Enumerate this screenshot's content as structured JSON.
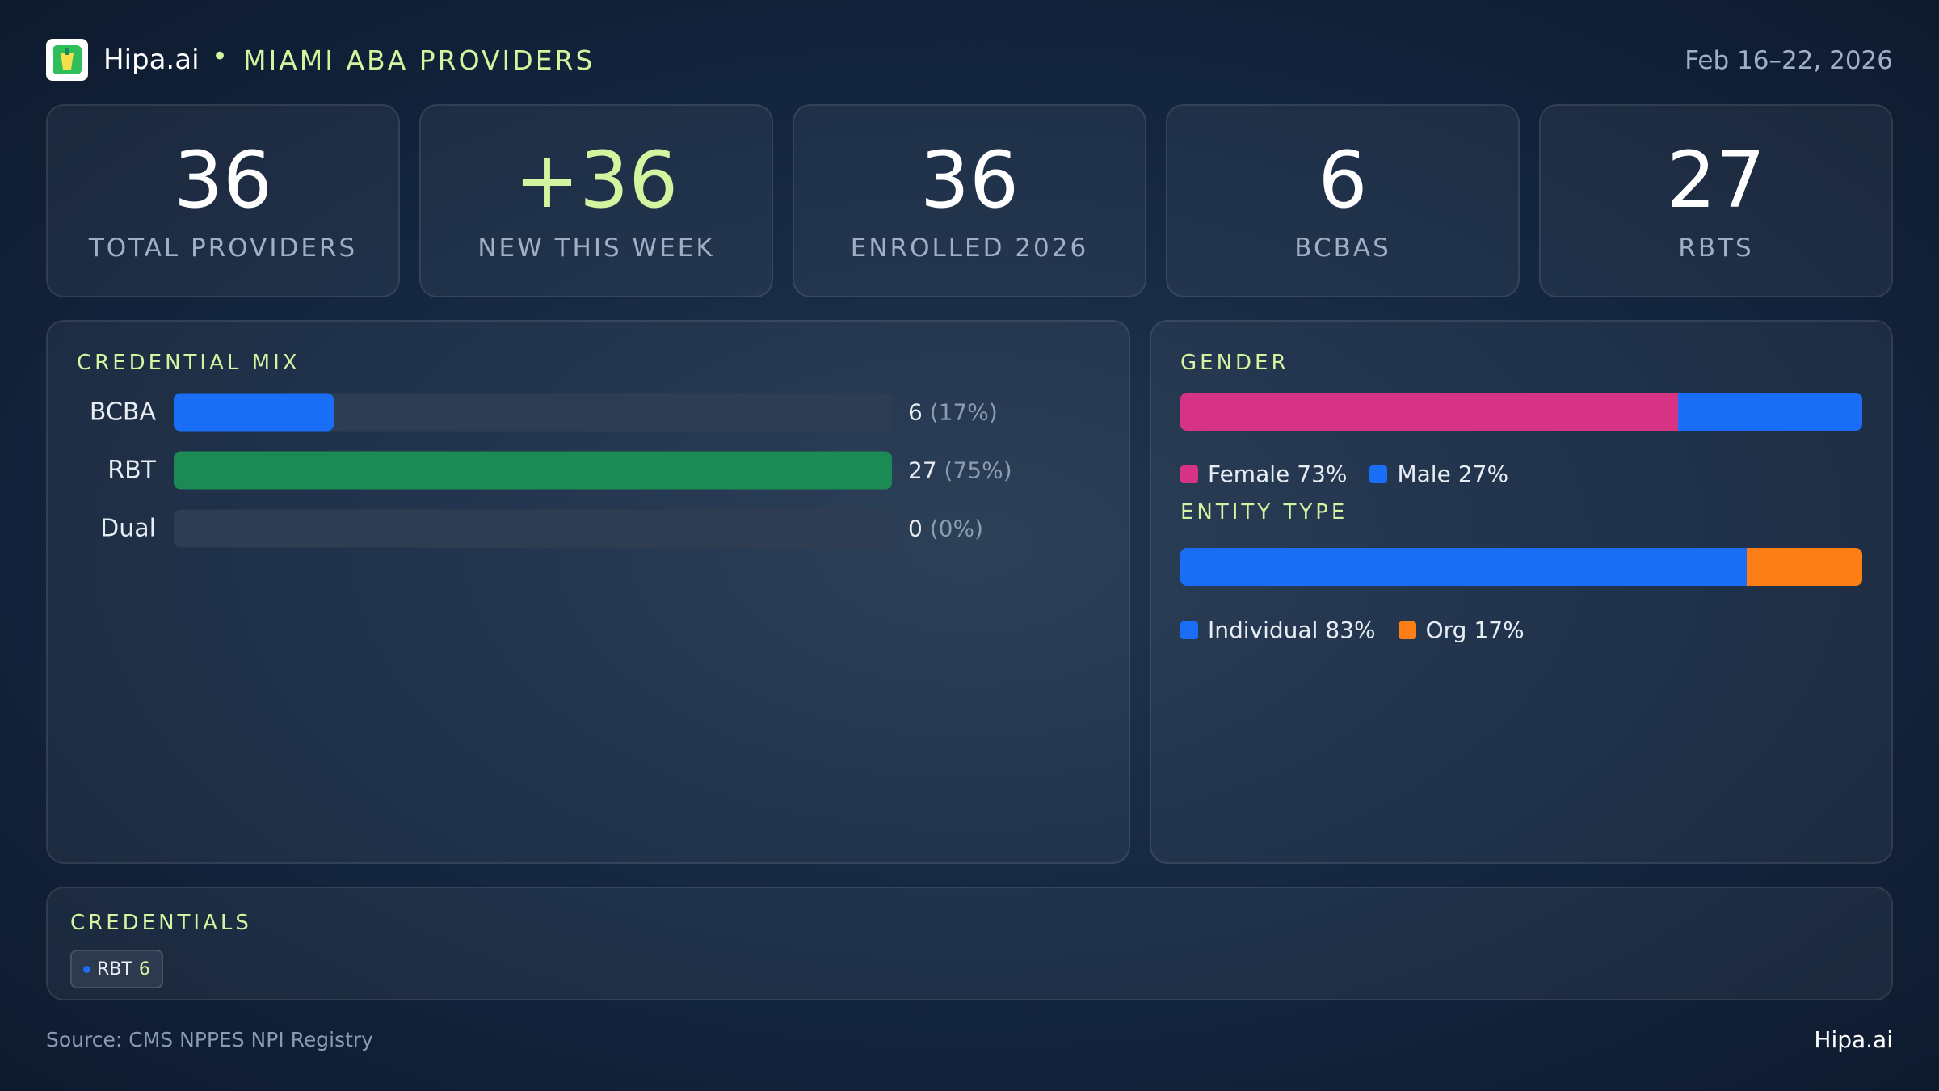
{
  "header": {
    "brand": "Hipa.ai",
    "title": "MIAMI ABA PROVIDERS",
    "date": "Feb 16–22, 2026"
  },
  "kpis": [
    {
      "value": 36,
      "label": "TOTAL PROVIDERS"
    },
    {
      "value": "+36",
      "label": "NEW THIS WEEK"
    },
    {
      "value": 36,
      "label": "ENROLLED 2026"
    },
    {
      "value": 6,
      "label": "BCBAS"
    },
    {
      "value": 27,
      "label": "RBTS"
    }
  ],
  "credential_mix": {
    "title": "CREDENTIAL MIX",
    "color_track": "#2e3d52",
    "rows": [
      {
        "label": "BCBA",
        "value": 6,
        "share": 17,
        "share_label": "(17%)",
        "color": "#1a6ef5"
      },
      {
        "label": "RBT",
        "value": 27,
        "share": 75,
        "share_label": "(75%)",
        "color": "#1c8a55"
      },
      {
        "label": "Dual",
        "value": 0,
        "share": 0,
        "share_label": "(0%)",
        "color": "#1a6ef5"
      }
    ]
  },
  "gender": {
    "title": "GENDER",
    "segments": [
      {
        "name": "Female",
        "value": 73,
        "value_label": "73%",
        "color": "#d63384"
      },
      {
        "name": "Male",
        "value": 27,
        "value_label": "27%",
        "color": "#1a6ef5"
      }
    ]
  },
  "entity_type": {
    "title": "ENTITY TYPE",
    "segments": [
      {
        "name": "Individual",
        "value": 83,
        "value_label": "83%",
        "color": "#1a6ef5"
      },
      {
        "name": "Org",
        "value": 17,
        "value_label": "17%",
        "color": "#fd7e14"
      }
    ]
  },
  "credentials": {
    "title": "CREDENTIALS",
    "chips": [
      {
        "label": "RBT",
        "count": 6
      }
    ]
  },
  "footer": {
    "source": "Source: CMS NPPES NPI Registry",
    "brand": "Hipa.ai"
  }
}
